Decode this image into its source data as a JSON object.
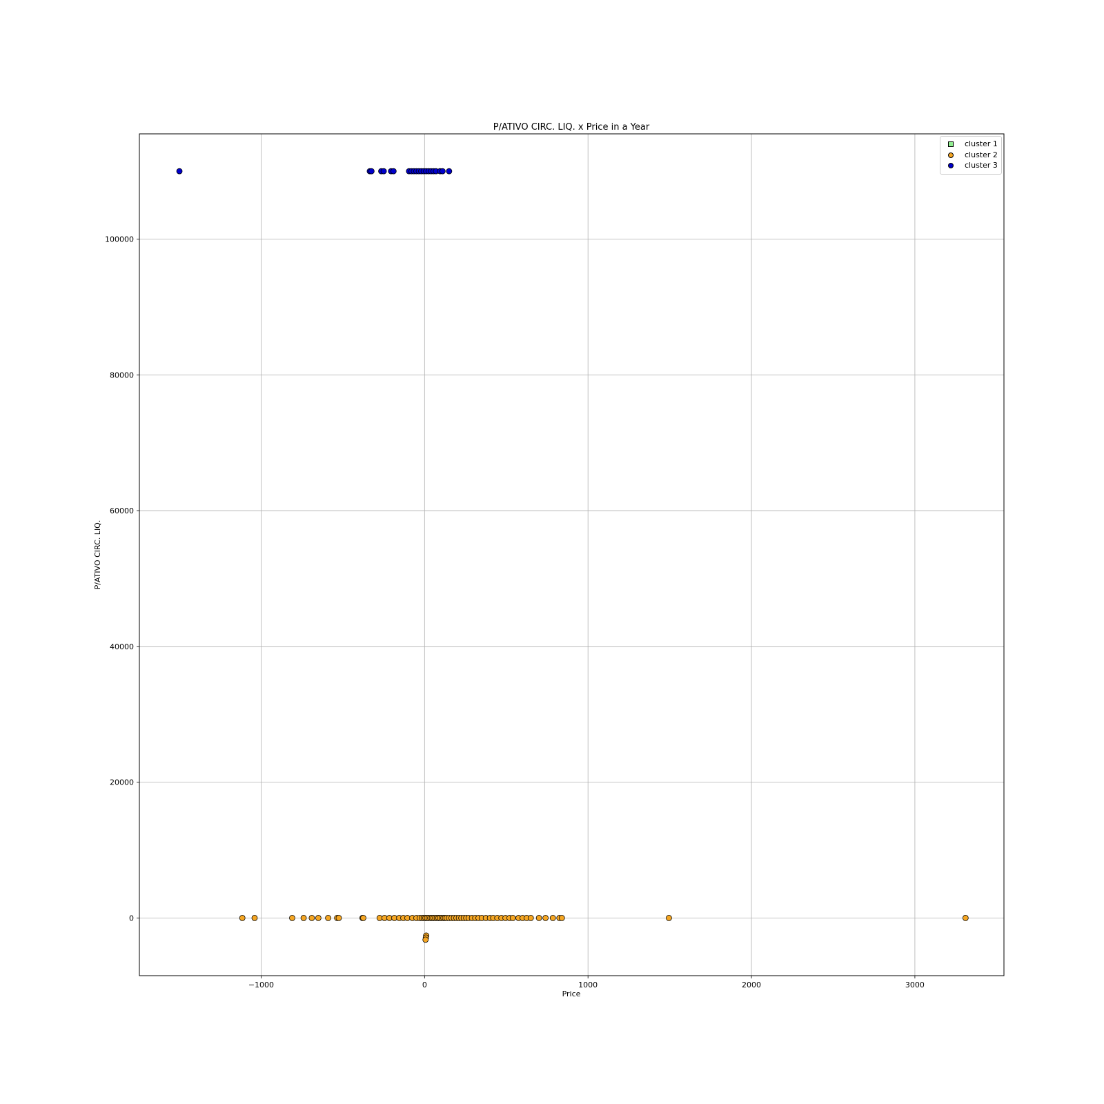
{
  "chart_data": {
    "type": "scatter",
    "title": "P/ATIVO CIRC. LIQ. x Price in a Year",
    "xlabel": "Price",
    "ylabel": "P/ATIVO CIRC. LIQ.",
    "xlim": [
      -1745,
      3545
    ],
    "ylim": [
      -8500,
      115500
    ],
    "xticks": [
      -1000,
      0,
      1000,
      2000,
      3000
    ],
    "xtick_labels": [
      "−1000",
      "0",
      "1000",
      "2000",
      "3000"
    ],
    "yticks": [
      0,
      20000,
      40000,
      60000,
      80000,
      100000
    ],
    "ytick_labels": [
      "0",
      "20000",
      "40000",
      "60000",
      "80000",
      "100000"
    ],
    "grid": true,
    "legend_position": "top-right",
    "series": [
      {
        "name": "cluster 1",
        "marker": "square",
        "color": "#90ee90",
        "points": []
      },
      {
        "name": "cluster 2",
        "marker": "circle",
        "color": "#f5a623",
        "points": [
          [
            -1115,
            0
          ],
          [
            -1040,
            0
          ],
          [
            -810,
            0
          ],
          [
            -740,
            0
          ],
          [
            -690,
            0
          ],
          [
            -650,
            0
          ],
          [
            -590,
            0
          ],
          [
            -535,
            0
          ],
          [
            -525,
            0
          ],
          [
            -380,
            0
          ],
          [
            -375,
            0
          ],
          [
            -275,
            0
          ],
          [
            -245,
            0
          ],
          [
            -215,
            0
          ],
          [
            -185,
            0
          ],
          [
            -155,
            0
          ],
          [
            -130,
            0
          ],
          [
            -105,
            0
          ],
          [
            -75,
            0
          ],
          [
            -50,
            0
          ],
          [
            -30,
            0
          ],
          [
            -15,
            0
          ],
          [
            -5,
            0
          ],
          [
            5,
            0
          ],
          [
            15,
            0
          ],
          [
            25,
            0
          ],
          [
            35,
            0
          ],
          [
            45,
            0
          ],
          [
            55,
            0
          ],
          [
            65,
            0
          ],
          [
            75,
            0
          ],
          [
            85,
            0
          ],
          [
            95,
            0
          ],
          [
            105,
            0
          ],
          [
            115,
            0
          ],
          [
            125,
            0
          ],
          [
            135,
            0
          ],
          [
            150,
            0
          ],
          [
            165,
            0
          ],
          [
            180,
            0
          ],
          [
            195,
            0
          ],
          [
            210,
            0
          ],
          [
            225,
            0
          ],
          [
            240,
            0
          ],
          [
            255,
            0
          ],
          [
            270,
            0
          ],
          [
            290,
            0
          ],
          [
            310,
            0
          ],
          [
            330,
            0
          ],
          [
            350,
            0
          ],
          [
            375,
            0
          ],
          [
            400,
            0
          ],
          [
            420,
            0
          ],
          [
            445,
            0
          ],
          [
            470,
            0
          ],
          [
            495,
            0
          ],
          [
            520,
            0
          ],
          [
            540,
            0
          ],
          [
            575,
            0
          ],
          [
            600,
            0
          ],
          [
            625,
            0
          ],
          [
            650,
            0
          ],
          [
            700,
            0
          ],
          [
            740,
            0
          ],
          [
            785,
            0
          ],
          [
            825,
            0
          ],
          [
            840,
            0
          ],
          [
            1495,
            0
          ],
          [
            3310,
            0
          ],
          [
            10,
            -2600
          ],
          [
            8,
            -2900
          ],
          [
            6,
            -3200
          ]
        ]
      },
      {
        "name": "cluster 3",
        "marker": "circle",
        "color": "#0000cd",
        "points": [
          [
            -1500,
            110000
          ],
          [
            -335,
            110000
          ],
          [
            -325,
            110000
          ],
          [
            -265,
            110000
          ],
          [
            -250,
            110000
          ],
          [
            -205,
            110000
          ],
          [
            -190,
            110000
          ],
          [
            -95,
            110000
          ],
          [
            -80,
            110000
          ],
          [
            -65,
            110000
          ],
          [
            -50,
            110000
          ],
          [
            -35,
            110000
          ],
          [
            -20,
            110000
          ],
          [
            -5,
            110000
          ],
          [
            10,
            110000
          ],
          [
            25,
            110000
          ],
          [
            40,
            110000
          ],
          [
            55,
            110000
          ],
          [
            70,
            110000
          ],
          [
            95,
            110000
          ],
          [
            110,
            110000
          ],
          [
            150,
            110000
          ]
        ]
      }
    ]
  }
}
